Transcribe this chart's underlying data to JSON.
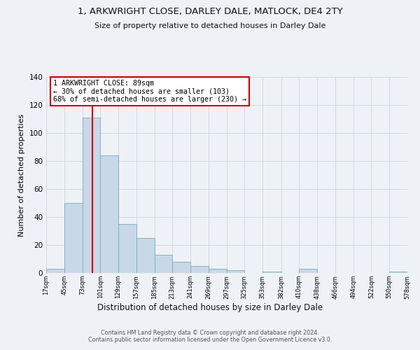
{
  "title": "1, ARKWRIGHT CLOSE, DARLEY DALE, MATLOCK, DE4 2TY",
  "subtitle": "Size of property relative to detached houses in Darley Dale",
  "xlabel": "Distribution of detached houses by size in Darley Dale",
  "ylabel": "Number of detached properties",
  "bin_edges": [
    17,
    45,
    73,
    101,
    129,
    157,
    185,
    213,
    241,
    269,
    297,
    325,
    353,
    382,
    410,
    438,
    466,
    494,
    522,
    550,
    578
  ],
  "bin_heights": [
    3,
    50,
    111,
    84,
    35,
    25,
    13,
    8,
    5,
    3,
    2,
    0,
    1,
    0,
    3,
    0,
    0,
    0,
    0,
    1
  ],
  "bar_color": "#c8d8e8",
  "bar_edge_color": "#7aaabb",
  "vline_color": "#cc0000",
  "vline_x": 89,
  "annotation_text": "1 ARKWRIGHT CLOSE: 89sqm\n← 30% of detached houses are smaller (103)\n68% of semi-detached houses are larger (230) →",
  "annotation_box_color": "#ffffff",
  "annotation_box_edge_color": "#cc0000",
  "ylim": [
    0,
    140
  ],
  "yticks": [
    0,
    20,
    40,
    60,
    80,
    100,
    120,
    140
  ],
  "tick_labels": [
    "17sqm",
    "45sqm",
    "73sqm",
    "101sqm",
    "129sqm",
    "157sqm",
    "185sqm",
    "213sqm",
    "241sqm",
    "269sqm",
    "297sqm",
    "325sqm",
    "353sqm",
    "382sqm",
    "410sqm",
    "438sqm",
    "466sqm",
    "494sqm",
    "522sqm",
    "550sqm",
    "578sqm"
  ],
  "footer": "Contains HM Land Registry data © Crown copyright and database right 2024.\nContains public sector information licensed under the Open Government Licence v3.0.",
  "bg_color": "#eef2f6",
  "grid_color": "#d0d8e0"
}
